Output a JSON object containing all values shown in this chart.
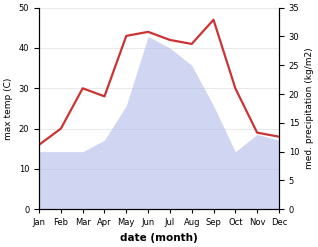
{
  "months": [
    "Jan",
    "Feb",
    "Mar",
    "Apr",
    "May",
    "Jun",
    "Jul",
    "Aug",
    "Sep",
    "Oct",
    "Nov",
    "Dec"
  ],
  "temperature": [
    16,
    20,
    30,
    28,
    43,
    44,
    42,
    41,
    47,
    30,
    19,
    18
  ],
  "precipitation": [
    10,
    10,
    10,
    12,
    18,
    30,
    28,
    25,
    18,
    10,
    13,
    12
  ],
  "temp_ylim": [
    0,
    50
  ],
  "precip_ylim": [
    0,
    35
  ],
  "temp_color": "#cc3333",
  "fill_color": "#aab4e8",
  "fill_alpha": 0.55,
  "ylabel_left": "max temp (C)",
  "ylabel_right": "med. precipitation (kg/m2)",
  "xlabel": "date (month)",
  "bg_color": "#ffffff",
  "line_width": 1.6,
  "tick_fontsize": 6.0,
  "label_fontsize": 6.5,
  "xlabel_fontsize": 7.5
}
